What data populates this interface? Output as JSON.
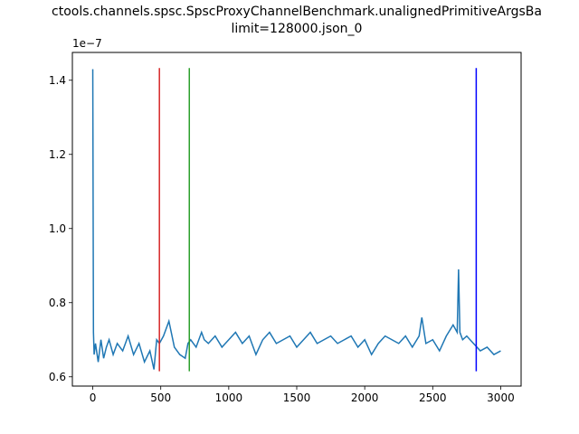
{
  "chart_data": {
    "type": "line",
    "title_line1": "ctools.channels.spsc.SpscProxyChannelBenchmark.unalignedPrimitiveArgsBa",
    "title_line2": "limit=128000.json_0",
    "xlabel": "",
    "ylabel": "",
    "y_offset_label": "1e−7",
    "xlim": [
      -150,
      3150
    ],
    "ylim": [
      5.75e-08,
      1.475e-07
    ],
    "x_ticks": [
      0,
      500,
      1000,
      1500,
      2000,
      2500,
      3000
    ],
    "x_tick_labels": [
      "0",
      "500",
      "1000",
      "1500",
      "2000",
      "2500",
      "3000"
    ],
    "y_ticks": [
      6e-08,
      8e-08,
      1e-07,
      1.2e-07,
      1.4e-07
    ],
    "y_tick_labels": [
      "0.6",
      "0.8",
      "1.0",
      "1.2",
      "1.4"
    ],
    "grid": false,
    "series": [
      {
        "color": "#1f77b4",
        "x": [
          0,
          5,
          10,
          20,
          40,
          60,
          80,
          100,
          120,
          150,
          180,
          220,
          260,
          300,
          340,
          380,
          420,
          450,
          470,
          490,
          520,
          560,
          600,
          640,
          680,
          700,
          720,
          760,
          800,
          820,
          850,
          900,
          950,
          1000,
          1050,
          1100,
          1150,
          1200,
          1250,
          1300,
          1350,
          1400,
          1450,
          1500,
          1550,
          1600,
          1650,
          1700,
          1750,
          1800,
          1850,
          1900,
          1950,
          2000,
          2050,
          2100,
          2150,
          2200,
          2250,
          2300,
          2350,
          2400,
          2420,
          2450,
          2500,
          2550,
          2600,
          2650,
          2680,
          2690,
          2700,
          2720,
          2750,
          2800,
          2850,
          2900,
          2950,
          3000
        ],
        "values": [
          1.43e-07,
          7.2e-08,
          6.6e-08,
          6.9e-08,
          6.4e-08,
          7e-08,
          6.5e-08,
          6.8e-08,
          7e-08,
          6.6e-08,
          6.9e-08,
          6.7e-08,
          7.1e-08,
          6.6e-08,
          6.9e-08,
          6.4e-08,
          6.7e-08,
          6.2e-08,
          7e-08,
          6.9e-08,
          7.1e-08,
          7.5e-08,
          6.8e-08,
          6.6e-08,
          6.5e-08,
          6.9e-08,
          7e-08,
          6.8e-08,
          7.2e-08,
          7e-08,
          6.9e-08,
          7.1e-08,
          6.8e-08,
          7e-08,
          7.2e-08,
          6.9e-08,
          7.1e-08,
          6.6e-08,
          7e-08,
          7.2e-08,
          6.9e-08,
          7e-08,
          7.1e-08,
          6.8e-08,
          7e-08,
          7.2e-08,
          6.9e-08,
          7e-08,
          7.1e-08,
          6.9e-08,
          7e-08,
          7.1e-08,
          6.8e-08,
          7e-08,
          6.6e-08,
          6.9e-08,
          7.1e-08,
          7e-08,
          6.9e-08,
          7.1e-08,
          6.8e-08,
          7.1e-08,
          7.6e-08,
          6.9e-08,
          7e-08,
          6.7e-08,
          7.1e-08,
          7.4e-08,
          7.2e-08,
          8.9e-08,
          7.2e-08,
          7e-08,
          7.1e-08,
          6.9e-08,
          6.7e-08,
          6.8e-08,
          6.6e-08,
          6.7e-08
        ]
      }
    ],
    "vlines": [
      {
        "x": 490,
        "ymin": 6.15e-08,
        "ymax": 1.433e-07,
        "color": "#d62728"
      },
      {
        "x": 710,
        "ymin": 6.15e-08,
        "ymax": 1.433e-07,
        "color": "#2ca02c"
      },
      {
        "x": 2820,
        "ymin": 6.15e-08,
        "ymax": 1.433e-07,
        "color": "#0000ff"
      }
    ]
  }
}
